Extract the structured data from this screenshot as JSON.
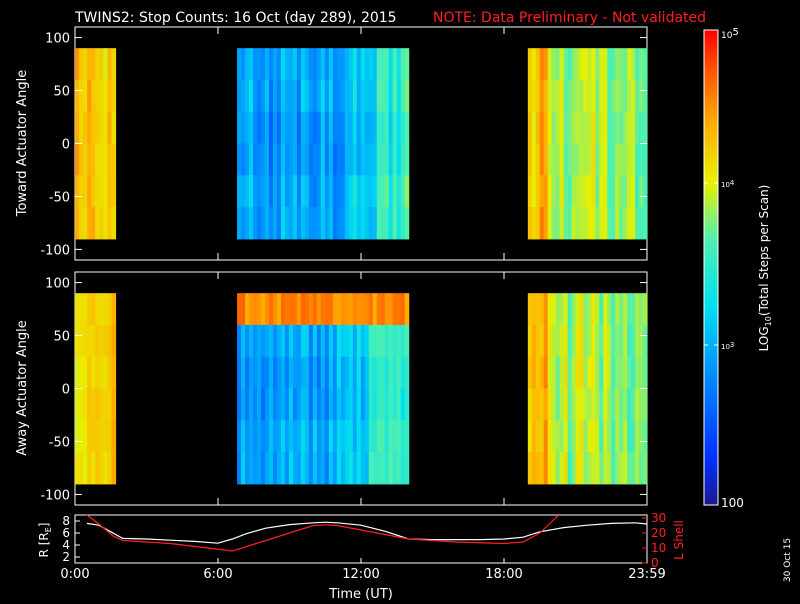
{
  "title": {
    "main": "TWINS2: Stop Counts: 16 Oct (day 289), 2015",
    "note": "NOTE: Data Preliminary - Not validated",
    "note_color": "#ff2020"
  },
  "footer_date": "30 Oct 15",
  "chart_data": [
    {
      "type": "heatmap",
      "ylabel": "Toward Actuator Angle",
      "ylim": [
        -110,
        110
      ],
      "yticks": [
        "100",
        "50",
        "0",
        "-50",
        "-100"
      ],
      "ytick_values": [
        100,
        50,
        0,
        -50,
        -100
      ],
      "xlim": [
        0,
        24
      ],
      "data_ylim": [
        -90,
        90
      ],
      "segments": [
        {
          "x_start": 0.0,
          "x_end": 1.7,
          "level": 0.75
        },
        {
          "x_start": 6.8,
          "x_end": 14.0,
          "level": 0.32
        },
        {
          "x_start": 19.0,
          "x_end": 24.0,
          "level": 0.62
        }
      ]
    },
    {
      "type": "heatmap",
      "ylabel": "Away Actuator Angle",
      "ylim": [
        -110,
        110
      ],
      "yticks": [
        "100",
        "50",
        "0",
        "-50",
        "-100"
      ],
      "ytick_values": [
        100,
        50,
        0,
        -50,
        -100
      ],
      "xlim": [
        0,
        24
      ],
      "data_ylim": [
        -90,
        90
      ],
      "segments": [
        {
          "x_start": 0.0,
          "x_end": 1.7,
          "level": 0.75
        },
        {
          "x_start": 6.8,
          "x_end": 14.0,
          "level": 0.33
        },
        {
          "x_start": 19.0,
          "x_end": 24.0,
          "level": 0.62
        }
      ]
    },
    {
      "type": "line",
      "xlabel": "Time (UT)",
      "xticks": [
        "0:00",
        "6:00",
        "12:00",
        "18:00",
        "23:59"
      ],
      "xtick_values": [
        0,
        6,
        12,
        18,
        24
      ],
      "xlim": [
        0,
        24
      ],
      "left_axis": {
        "label": "R [R",
        "label_sub": "E",
        "label_end": "]",
        "ylim": [
          1,
          9
        ],
        "ticks": [
          "8",
          "6",
          "4",
          "2"
        ],
        "tick_values": [
          8,
          6,
          4,
          2
        ]
      },
      "right_axis": {
        "label": "L Shell",
        "ylim": [
          0,
          32
        ],
        "ticks": [
          "30",
          "20",
          "10",
          "0"
        ],
        "tick_values": [
          30,
          20,
          10,
          0
        ],
        "color": "#ff2020"
      },
      "series": [
        {
          "axis": "left",
          "color": "#ffffff",
          "x": [
            0.5,
            1.0,
            1.5,
            2.0,
            3.0,
            4.0,
            5.0,
            6.0,
            6.6,
            7.2,
            8.0,
            9.0,
            10.0,
            10.5,
            11.0,
            12.0,
            13.0,
            14.0,
            15.0,
            16.0,
            17.0,
            18.0,
            18.8,
            19.5,
            20.5,
            21.5,
            22.5,
            23.5,
            24.0
          ],
          "y": [
            7.6,
            7.3,
            6.2,
            5.1,
            5.0,
            4.8,
            4.6,
            4.3,
            5.0,
            5.9,
            6.8,
            7.4,
            7.7,
            7.8,
            7.7,
            7.3,
            6.3,
            5.0,
            4.9,
            4.9,
            4.9,
            5.0,
            5.3,
            6.2,
            6.9,
            7.3,
            7.6,
            7.7,
            7.5
          ]
        },
        {
          "axis": "right",
          "color": "#ff2020",
          "x": [
            0.5,
            1.0,
            1.6,
            2.0,
            4.0,
            6.6,
            8.0,
            10.0,
            10.5,
            11.0,
            12.0,
            14.0,
            16.0,
            18.0,
            18.8,
            19.5,
            20.3
          ],
          "y": [
            32,
            26,
            18,
            15,
            13,
            8,
            15,
            25,
            25.5,
            25,
            22,
            16,
            14,
            13,
            14,
            20,
            32
          ]
        }
      ]
    }
  ],
  "colorbar": {
    "label": "LOG",
    "label_sub": "10",
    "label_rest": "(Total Steps per Scan)",
    "tick_top": "10",
    "tick_top_exp": "5",
    "tick_mid": "10",
    "tick_mid_exp": "4",
    "tick_low": "10",
    "tick_low_exp": "3",
    "tick_bottom": "100"
  }
}
